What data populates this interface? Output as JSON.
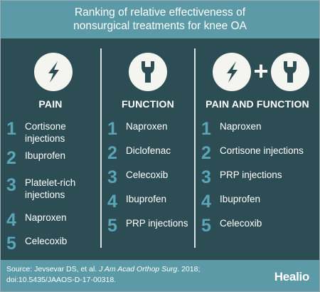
{
  "header": {
    "title_line1": "Ranking of relative effectiveness of",
    "title_line2": "nonsurgical treatments for knee OA"
  },
  "columns": [
    {
      "heading": "PAIN",
      "icons": [
        "lightning-icon"
      ],
      "items": [
        {
          "rank": "1",
          "text": "Cortisone injections"
        },
        {
          "rank": "2",
          "text": "Ibuprofen"
        },
        {
          "rank": "3",
          "text": "Platelet-rich injections"
        },
        {
          "rank": "4",
          "text": "Naproxen"
        },
        {
          "rank": "5",
          "text": "Celecoxib"
        }
      ]
    },
    {
      "heading": "FUNCTION",
      "icons": [
        "wrench-icon"
      ],
      "items": [
        {
          "rank": "1",
          "text": "Naproxen"
        },
        {
          "rank": "2",
          "text": "Diclofenac"
        },
        {
          "rank": "3",
          "text": "Celecoxib"
        },
        {
          "rank": "4",
          "text": "Ibuprofen"
        },
        {
          "rank": "5",
          "text": "PRP injections"
        }
      ]
    },
    {
      "heading": "PAIN AND FUNCTION",
      "icons": [
        "lightning-icon",
        "wrench-icon"
      ],
      "plus": "+",
      "items": [
        {
          "rank": "1",
          "text": "Naproxen"
        },
        {
          "rank": "2",
          "text": "Cortisone injections"
        },
        {
          "rank": "3",
          "text": "PRP injections"
        },
        {
          "rank": "4",
          "text": "Ibuprofen"
        },
        {
          "rank": "5",
          "text": "Celecoxib"
        }
      ]
    }
  ],
  "footer": {
    "source_prefix": "Source: Jevsevar DS, et al. ",
    "journal": "J Am Acad Orthop Surg",
    "source_suffix": ". 2018;",
    "doi": "doi:10.5435/JAAOS-D-17-00318.",
    "logo": "Healio"
  },
  "colors": {
    "background": "#2d4d55",
    "header_band": "#5b9aa6",
    "rank_number": "#5aa6b8",
    "icon_circle": "#f4f4f1"
  }
}
